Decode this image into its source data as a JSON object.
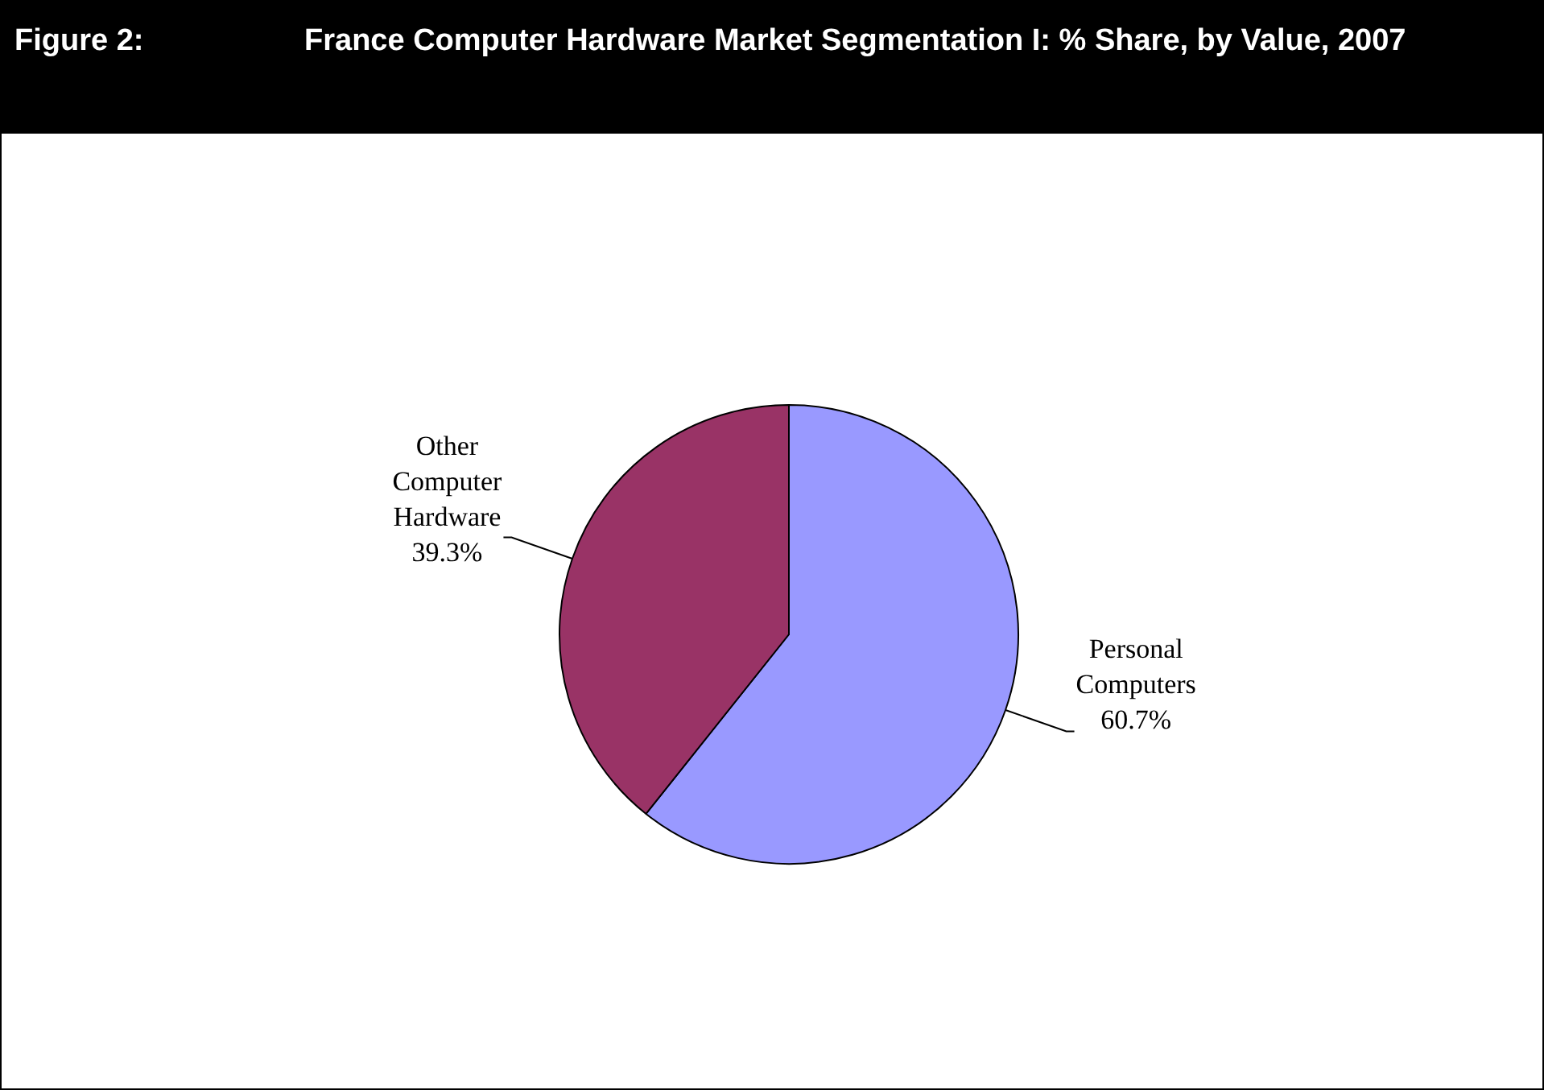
{
  "chart_data": {
    "type": "pie",
    "title": "France Computer Hardware Market Segmentation I: % Share, by Value, 2007",
    "annotations": [
      "Figure 2:"
    ],
    "categories": [
      "Personal Computers",
      "Other Computer Hardware"
    ],
    "values": [
      60.7,
      39.3
    ],
    "colors": [
      "#9999ff",
      "#993366"
    ],
    "value_labels": [
      "60.7%",
      "39.3%"
    ],
    "legend": false
  }
}
